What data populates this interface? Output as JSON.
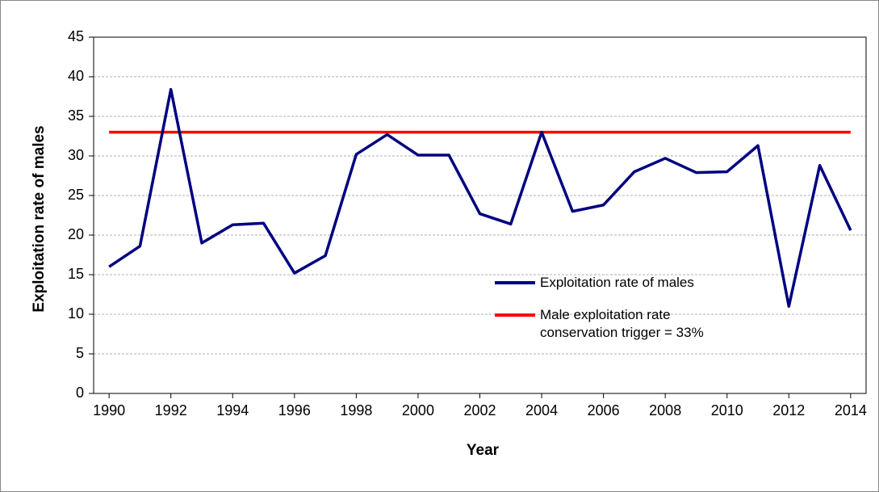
{
  "chart_data": {
    "type": "line",
    "x": [
      1990,
      1991,
      1992,
      1993,
      1994,
      1995,
      1996,
      1997,
      1998,
      1999,
      2000,
      2001,
      2002,
      2003,
      2004,
      2005,
      2006,
      2007,
      2008,
      2009,
      2010,
      2011,
      2012,
      2013,
      2014
    ],
    "series": [
      {
        "name": "Exploitation rate of males",
        "color": "#000080",
        "values": [
          16.0,
          18.6,
          38.4,
          19.0,
          21.3,
          21.5,
          15.2,
          17.4,
          30.2,
          32.7,
          30.1,
          30.1,
          22.7,
          21.4,
          33.0,
          23.0,
          23.8,
          28.0,
          29.7,
          27.9,
          28.0,
          31.3,
          11.0,
          28.8,
          20.6
        ]
      },
      {
        "name": "Male exploitation rate conservation trigger = 33%",
        "color": "#ff0000",
        "values": [
          33,
          33,
          33,
          33,
          33,
          33,
          33,
          33,
          33,
          33,
          33,
          33,
          33,
          33,
          33,
          33,
          33,
          33,
          33,
          33,
          33,
          33,
          33,
          33,
          33
        ]
      }
    ],
    "xlabel": "Year",
    "ylabel": "Exploitation rate of males",
    "xlim": [
      1989.5,
      2014.5
    ],
    "xticks": [
      1990,
      1992,
      1994,
      1996,
      1998,
      2000,
      2002,
      2004,
      2006,
      2008,
      2010,
      2012,
      2014
    ],
    "ylim": [
      0,
      45
    ],
    "yticks": [
      0,
      5,
      10,
      15,
      20,
      25,
      30,
      35,
      40,
      45
    ],
    "grid": true,
    "legend": "center-right"
  }
}
